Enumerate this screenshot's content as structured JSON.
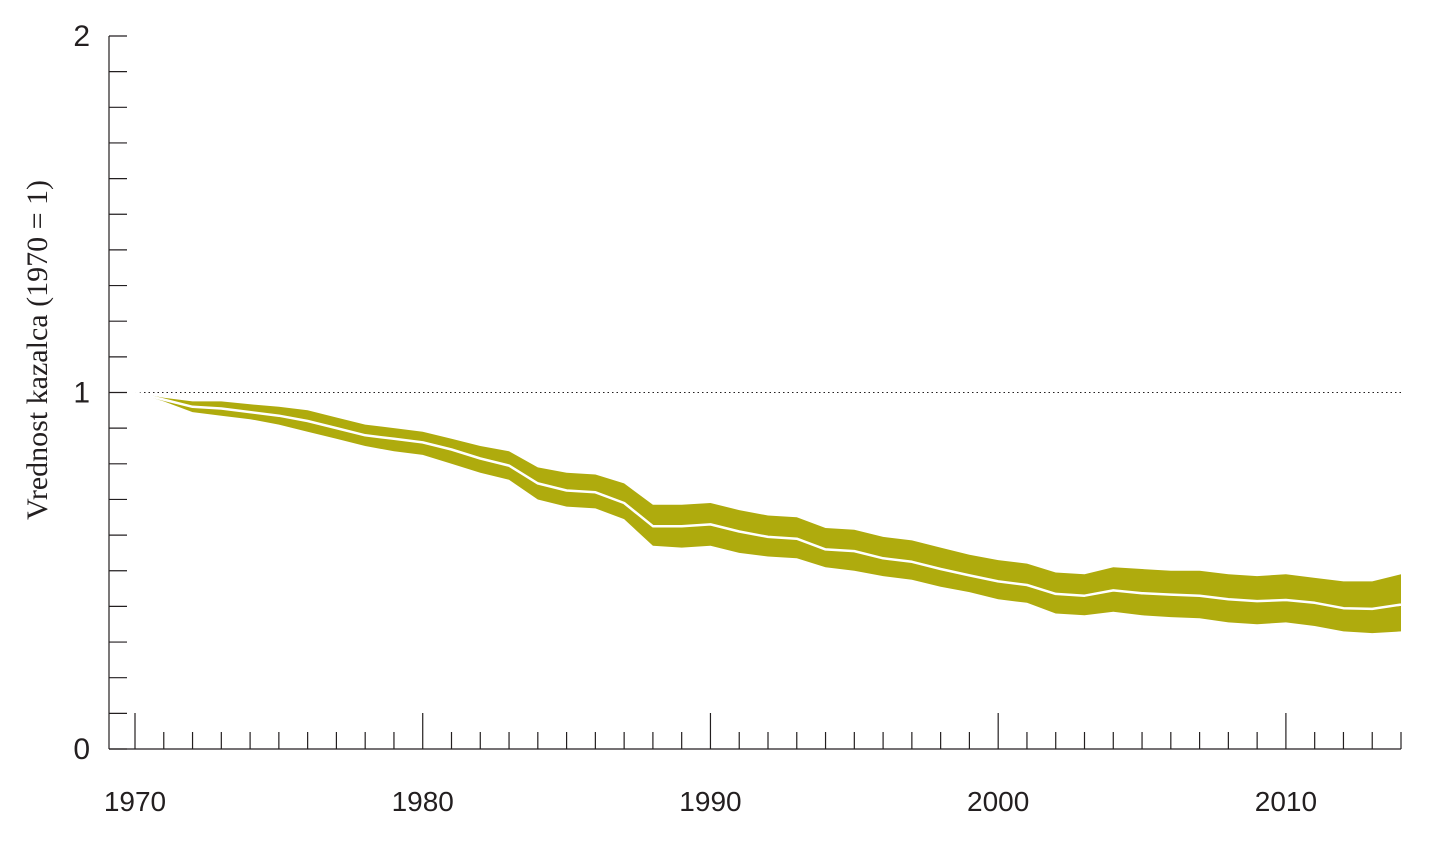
{
  "chart_data": {
    "type": "area",
    "title": "",
    "xlabel": "",
    "ylabel": "Vrednost kazalca (1970 = 1)",
    "xlim": [
      1970,
      2014
    ],
    "ylim": [
      0,
      2
    ],
    "y_ticks": [
      "0",
      "1",
      "2"
    ],
    "x_ticks": [
      "1970",
      "1980",
      "1990",
      "2000",
      "2010"
    ],
    "y_minor_step": 0.1,
    "reference_line": 1,
    "grid": false,
    "colors": {
      "band": "#afab0d",
      "line": "#ffffff",
      "axis": "#231f20"
    },
    "x": [
      1970,
      1971,
      1972,
      1973,
      1974,
      1975,
      1976,
      1977,
      1978,
      1979,
      1980,
      1981,
      1982,
      1983,
      1984,
      1985,
      1986,
      1987,
      1988,
      1989,
      1990,
      1991,
      1992,
      1993,
      1994,
      1995,
      1996,
      1997,
      1998,
      1999,
      2000,
      2001,
      2002,
      2003,
      2004,
      2005,
      2006,
      2007,
      2008,
      2009,
      2010,
      2011,
      2012,
      2013,
      2014
    ],
    "series": [
      {
        "role": "index",
        "values": [
          1.0,
          0.98,
          0.96,
          0.955,
          0.945,
          0.935,
          0.92,
          0.9,
          0.88,
          0.87,
          0.86,
          0.84,
          0.815,
          0.795,
          0.745,
          0.725,
          0.72,
          0.69,
          0.625,
          0.625,
          0.63,
          0.61,
          0.595,
          0.59,
          0.56,
          0.555,
          0.535,
          0.525,
          0.505,
          0.487,
          0.47,
          0.46,
          0.435,
          0.43,
          0.445,
          0.437,
          0.433,
          0.43,
          0.42,
          0.415,
          0.418,
          0.41,
          0.395,
          0.393,
          0.405
        ]
      },
      {
        "role": "upper_bound",
        "values": [
          1.0,
          0.985,
          0.975,
          0.975,
          0.967,
          0.96,
          0.95,
          0.93,
          0.91,
          0.9,
          0.89,
          0.87,
          0.85,
          0.835,
          0.79,
          0.775,
          0.77,
          0.745,
          0.685,
          0.685,
          0.69,
          0.67,
          0.655,
          0.65,
          0.62,
          0.615,
          0.595,
          0.585,
          0.565,
          0.545,
          0.53,
          0.52,
          0.495,
          0.49,
          0.51,
          0.505,
          0.5,
          0.5,
          0.49,
          0.485,
          0.49,
          0.48,
          0.47,
          0.47,
          0.49
        ]
      },
      {
        "role": "lower_bound",
        "values": [
          1.0,
          0.975,
          0.945,
          0.935,
          0.925,
          0.91,
          0.89,
          0.87,
          0.85,
          0.835,
          0.825,
          0.8,
          0.775,
          0.755,
          0.7,
          0.68,
          0.675,
          0.645,
          0.57,
          0.565,
          0.57,
          0.55,
          0.54,
          0.535,
          0.51,
          0.5,
          0.485,
          0.475,
          0.455,
          0.44,
          0.42,
          0.41,
          0.38,
          0.375,
          0.385,
          0.375,
          0.37,
          0.367,
          0.355,
          0.35,
          0.355,
          0.345,
          0.33,
          0.325,
          0.33
        ]
      }
    ]
  }
}
